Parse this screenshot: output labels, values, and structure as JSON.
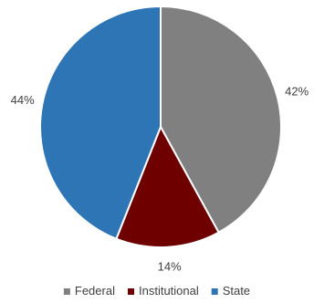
{
  "chart_data": {
    "type": "pie",
    "title": "",
    "slices": [
      {
        "label": "Federal",
        "value": 42,
        "display": "42%",
        "color": "#808080"
      },
      {
        "label": "Institutional",
        "value": 14,
        "display": "14%",
        "color": "#6E0000"
      },
      {
        "label": "State",
        "value": 44,
        "display": "44%",
        "color": "#2E75B6"
      }
    ],
    "legend": {
      "position": "bottom",
      "entries": [
        "Federal",
        "Institutional",
        "State"
      ]
    },
    "start_angle_deg": 0,
    "direction": "clockwise"
  }
}
